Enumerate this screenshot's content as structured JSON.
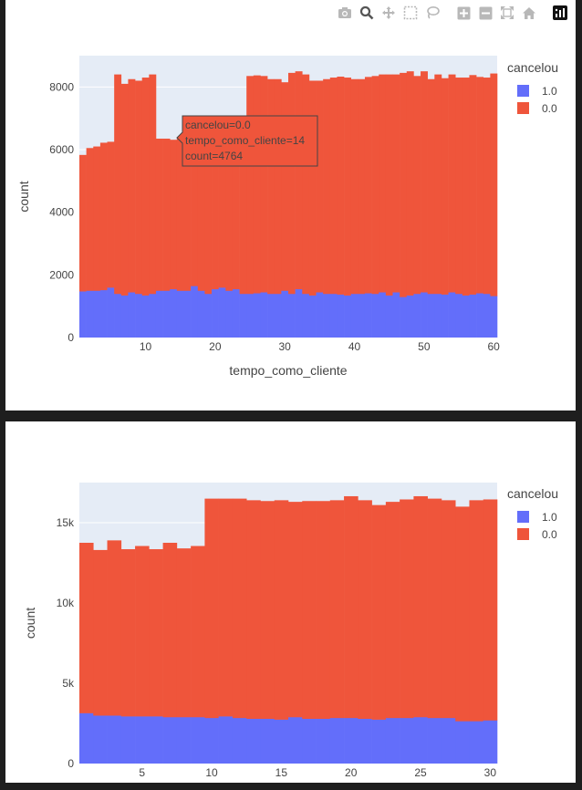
{
  "modebar": {
    "icons": [
      "camera-icon",
      "zoom-icon",
      "pan-icon",
      "box-select-icon",
      "lasso-icon",
      "zoom-in-icon",
      "zoom-out-icon",
      "autoscale-icon",
      "reset-axes-icon",
      "plotly-logo-icon"
    ]
  },
  "colors": {
    "plot_bg": "#e5ecf6",
    "series_1": "#636efa",
    "series_0": "#ef553b",
    "grid": "#ffffff"
  },
  "chart_data": [
    {
      "type": "bar",
      "barmode": "stack",
      "xlabel": "tempo_como_cliente",
      "ylabel": "count",
      "xlim": [
        0.5,
        60.5
      ],
      "ylim": [
        0,
        9000
      ],
      "xticks": [
        10,
        20,
        30,
        40,
        50,
        60
      ],
      "xtick_labels": [
        "10",
        "20",
        "30",
        "40",
        "50",
        "60"
      ],
      "yticks": [
        0,
        2000,
        4000,
        6000,
        8000
      ],
      "ytick_labels": [
        "0",
        "2000",
        "4000",
        "6000",
        "8000"
      ],
      "legend": {
        "title": "cancelou",
        "placement": "top-right",
        "entries": [
          "1.0",
          "0.0"
        ]
      },
      "x": [
        1,
        2,
        3,
        4,
        5,
        6,
        7,
        8,
        9,
        10,
        11,
        12,
        13,
        14,
        15,
        16,
        17,
        18,
        19,
        20,
        21,
        22,
        23,
        24,
        25,
        26,
        27,
        28,
        29,
        30,
        31,
        32,
        33,
        34,
        35,
        36,
        37,
        38,
        39,
        40,
        41,
        42,
        43,
        44,
        45,
        46,
        47,
        48,
        49,
        50,
        51,
        52,
        53,
        54,
        55,
        56,
        57,
        58,
        59,
        60
      ],
      "series": [
        {
          "name": "1.0",
          "values": [
            1480,
            1500,
            1500,
            1520,
            1600,
            1400,
            1350,
            1450,
            1400,
            1350,
            1400,
            1500,
            1500,
            1550,
            1500,
            1500,
            1650,
            1500,
            1400,
            1550,
            1600,
            1500,
            1550,
            1400,
            1400,
            1420,
            1450,
            1400,
            1400,
            1500,
            1400,
            1550,
            1400,
            1350,
            1450,
            1400,
            1400,
            1380,
            1350,
            1400,
            1400,
            1420,
            1400,
            1450,
            1350,
            1450,
            1300,
            1350,
            1400,
            1450,
            1400,
            1400,
            1380,
            1450,
            1400,
            1350,
            1380,
            1420,
            1400,
            1330
          ]
        },
        {
          "name": "0.0",
          "values": [
            4350,
            4550,
            4600,
            4700,
            4650,
            7000,
            6750,
            6800,
            6800,
            6950,
            7000,
            4850,
            4850,
            4764,
            4900,
            4800,
            4700,
            4850,
            4900,
            4850,
            4700,
            4800,
            4750,
            4900,
            6950,
            6950,
            6900,
            6850,
            6850,
            6650,
            7050,
            6950,
            7000,
            6850,
            6750,
            6850,
            6900,
            6950,
            6950,
            6850,
            6850,
            6900,
            6950,
            6950,
            7050,
            6950,
            7150,
            7150,
            6950,
            7050,
            6850,
            7000,
            6900,
            6950,
            6900,
            6950,
            7000,
            6900,
            6900,
            7100
          ]
        }
      ]
    },
    {
      "type": "bar",
      "barmode": "stack",
      "xlabel": "",
      "ylabel": "count",
      "xlim": [
        0.5,
        30.5
      ],
      "ylim": [
        0,
        17500
      ],
      "xticks": [
        5,
        10,
        15,
        20,
        25,
        30
      ],
      "xtick_labels": [
        "5",
        "10",
        "15",
        "20",
        "25",
        "30"
      ],
      "yticks": [
        0,
        5000,
        10000,
        15000
      ],
      "ytick_labels": [
        "0",
        "5k",
        "10k",
        "15k"
      ],
      "legend": {
        "title": "cancelou",
        "placement": "top-right",
        "entries": [
          "1.0",
          "0.0"
        ]
      },
      "x": [
        1,
        2,
        3,
        4,
        5,
        6,
        7,
        8,
        9,
        10,
        11,
        12,
        13,
        14,
        15,
        16,
        17,
        18,
        19,
        20,
        21,
        22,
        23,
        24,
        25,
        26,
        27,
        28,
        29,
        30
      ],
      "series": [
        {
          "name": "1.0",
          "values": [
            3150,
            3000,
            3000,
            2950,
            2950,
            2950,
            2900,
            2900,
            2900,
            2850,
            2950,
            2850,
            2800,
            2800,
            2750,
            2900,
            2800,
            2800,
            2850,
            2850,
            2800,
            2750,
            2850,
            2850,
            2900,
            2850,
            2850,
            2650,
            2650,
            2700
          ]
        },
        {
          "name": "0.0",
          "values": [
            10600,
            10300,
            10900,
            10400,
            10600,
            10400,
            10850,
            10500,
            10650,
            13650,
            13550,
            13650,
            13600,
            13550,
            13650,
            13400,
            13550,
            13550,
            13550,
            13800,
            13600,
            13350,
            13450,
            13600,
            13750,
            13650,
            13550,
            13350,
            13750,
            13750
          ]
        }
      ]
    }
  ],
  "hover": {
    "line1": "cancelou=0.0",
    "line2": "tempo_como_cliente=14",
    "line3": "count=4764"
  }
}
